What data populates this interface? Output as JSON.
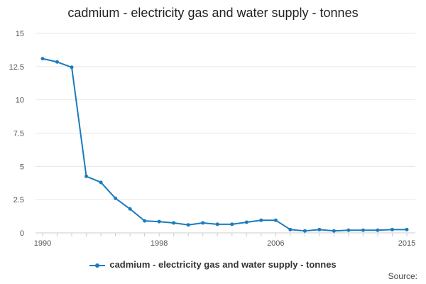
{
  "colors": {
    "series": "#1a7bbd",
    "grid": "#e6e6e6",
    "axis": "#cccccc",
    "text": "#555555"
  },
  "chart_data": {
    "type": "line",
    "title": "cadmium - electricity gas and water supply - tonnes",
    "xlabel": "",
    "ylabel": "",
    "x": [
      1990,
      1991,
      1992,
      1993,
      1994,
      1995,
      1996,
      1997,
      1998,
      1999,
      2000,
      2001,
      2002,
      2003,
      2004,
      2005,
      2006,
      2007,
      2008,
      2009,
      2010,
      2011,
      2012,
      2013,
      2014,
      2015
    ],
    "series": [
      {
        "name": "cadmium - electricity gas and water supply - tonnes",
        "values": [
          13.1,
          12.85,
          12.45,
          4.25,
          3.8,
          2.6,
          1.8,
          0.9,
          0.85,
          0.75,
          0.6,
          0.75,
          0.65,
          0.65,
          0.8,
          0.95,
          0.95,
          0.25,
          0.15,
          0.25,
          0.15,
          0.2,
          0.2,
          0.2,
          0.25,
          0.25
        ]
      }
    ],
    "ylim": [
      0,
      15
    ],
    "xlim": [
      1990,
      2015
    ],
    "yticks": [
      0,
      2.5,
      5,
      7.5,
      10,
      12.5,
      15
    ],
    "ytick_labels": [
      "0",
      "2.5",
      "5",
      "7.5",
      "10",
      "12.5",
      "15"
    ],
    "xtick_labels": [
      "1990",
      "1998",
      "2006",
      "2015"
    ],
    "legend": "bottom-center",
    "grid": true
  },
  "source_label": "Source:"
}
